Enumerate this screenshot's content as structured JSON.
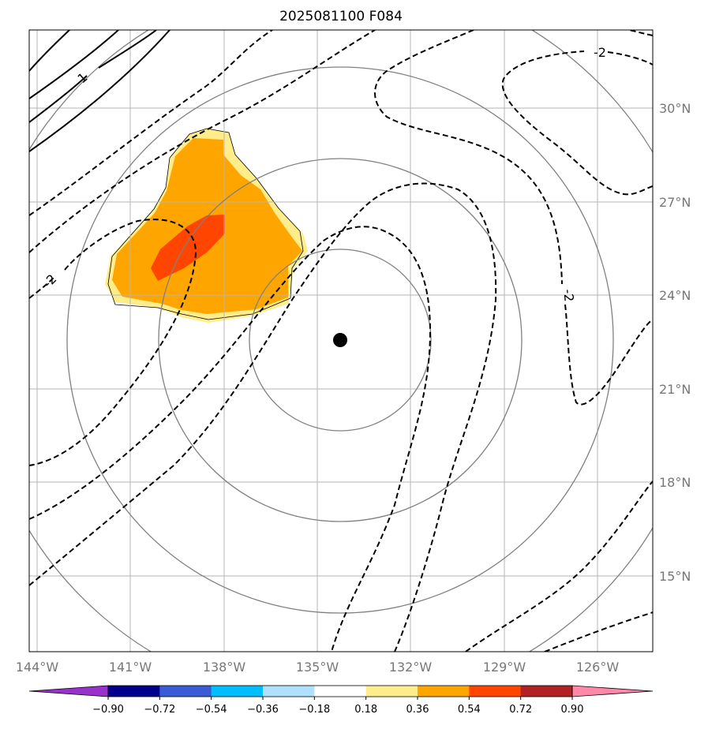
{
  "title": "2025081100 F084",
  "map": {
    "lon_labels": [
      "144°W",
      "141°W",
      "138°W",
      "135°W",
      "132°W",
      "129°W",
      "126°W"
    ],
    "lat_labels": [
      "30°N",
      "27°N",
      "24°N",
      "21°N",
      "18°N",
      "15°N"
    ],
    "storm_center": {
      "lon": -134.3,
      "lat": 22.5
    },
    "contour_labels": [
      "1",
      "-2",
      "-2",
      "-2"
    ],
    "grid": true,
    "range_rings": 4
  },
  "colorbar": {
    "tick_labels": [
      "−0.90",
      "−0.72",
      "−0.54",
      "−0.36",
      "−0.18",
      "0.18",
      "0.36",
      "0.54",
      "0.72",
      "0.90"
    ],
    "colors": [
      "#9932cc",
      "#00008b",
      "#3a5bd6",
      "#00bfff",
      "#b0e0ff",
      "#ffffff",
      "#ffec8b",
      "#ffa500",
      "#ff4500",
      "#b22222",
      "#ff88aa",
      "#ff88aa"
    ]
  },
  "fill_colors": {
    "level_018": "#ffec8b",
    "level_036": "#ffa500",
    "level_054": "#ff4500"
  }
}
